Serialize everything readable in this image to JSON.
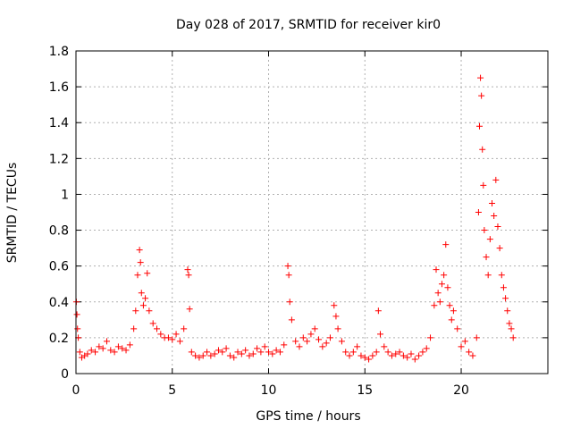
{
  "chart_data": {
    "type": "scatter",
    "title": "Day 028 of 2017, SRMTID for receiver kir0",
    "xlabel": "GPS time / hours",
    "ylabel": "SRMTID / TECUs",
    "xlim": [
      0,
      24.5
    ],
    "ylim": [
      0,
      1.8
    ],
    "grid": true,
    "x_ticks": [
      0,
      5,
      10,
      15,
      20
    ],
    "x_tick_labels": [
      "0",
      "5",
      "10",
      "15",
      "20"
    ],
    "y_ticks": [
      0,
      0.2,
      0.4,
      0.6,
      0.8,
      1.0,
      1.2,
      1.4,
      1.6,
      1.8
    ],
    "y_tick_labels": [
      "0",
      "0.2",
      "0.4",
      "0.6",
      "0.8",
      "1",
      "1.2",
      "1.4",
      "1.6",
      "1.8"
    ],
    "marker": "+",
    "color": "#ff0000",
    "series": [
      {
        "name": "SRMTID",
        "x": [
          0.02,
          0.05,
          0.08,
          0.12,
          0.2,
          0.3,
          0.45,
          0.6,
          0.8,
          1.0,
          1.2,
          1.4,
          1.6,
          1.8,
          2.0,
          2.2,
          2.4,
          2.6,
          2.8,
          3.0,
          3.1,
          3.2,
          3.3,
          3.35,
          3.4,
          3.5,
          3.6,
          3.7,
          3.8,
          4.0,
          4.2,
          4.4,
          4.6,
          4.8,
          5.0,
          5.2,
          5.4,
          5.6,
          5.8,
          5.85,
          5.9,
          6.0,
          6.2,
          6.4,
          6.6,
          6.8,
          7.0,
          7.2,
          7.4,
          7.6,
          7.8,
          8.0,
          8.2,
          8.4,
          8.6,
          8.8,
          9.0,
          9.2,
          9.4,
          9.6,
          9.8,
          10.0,
          10.2,
          10.4,
          10.6,
          10.8,
          11.0,
          11.05,
          11.1,
          11.2,
          11.4,
          11.6,
          11.8,
          12.0,
          12.2,
          12.4,
          12.6,
          12.8,
          13.0,
          13.2,
          13.4,
          13.5,
          13.6,
          13.8,
          14.0,
          14.2,
          14.4,
          14.6,
          14.8,
          15.0,
          15.2,
          15.4,
          15.6,
          15.7,
          15.8,
          16.0,
          16.2,
          16.4,
          16.6,
          16.8,
          17.0,
          17.2,
          17.4,
          17.6,
          17.8,
          18.0,
          18.2,
          18.4,
          18.6,
          18.7,
          18.8,
          18.9,
          19.0,
          19.1,
          19.2,
          19.3,
          19.4,
          19.5,
          19.6,
          19.8,
          20.0,
          20.2,
          20.4,
          20.6,
          20.8,
          20.9,
          20.95,
          21.0,
          21.05,
          21.1,
          21.15,
          21.2,
          21.3,
          21.4,
          21.5,
          21.6,
          21.7,
          21.8,
          21.9,
          22.0,
          22.1,
          22.2,
          22.3,
          22.4,
          22.5,
          22.6,
          22.7
        ],
        "y": [
          0.4,
          0.33,
          0.25,
          0.2,
          0.12,
          0.09,
          0.1,
          0.11,
          0.13,
          0.12,
          0.15,
          0.14,
          0.18,
          0.13,
          0.12,
          0.15,
          0.14,
          0.13,
          0.16,
          0.25,
          0.35,
          0.55,
          0.69,
          0.62,
          0.45,
          0.38,
          0.42,
          0.56,
          0.35,
          0.28,
          0.25,
          0.22,
          0.2,
          0.2,
          0.19,
          0.22,
          0.18,
          0.25,
          0.58,
          0.55,
          0.36,
          0.12,
          0.1,
          0.09,
          0.1,
          0.12,
          0.1,
          0.11,
          0.13,
          0.12,
          0.14,
          0.1,
          0.09,
          0.12,
          0.11,
          0.13,
          0.1,
          0.11,
          0.14,
          0.12,
          0.15,
          0.12,
          0.11,
          0.13,
          0.12,
          0.16,
          0.6,
          0.55,
          0.4,
          0.3,
          0.18,
          0.15,
          0.2,
          0.18,
          0.22,
          0.25,
          0.19,
          0.15,
          0.17,
          0.2,
          0.38,
          0.32,
          0.25,
          0.18,
          0.12,
          0.1,
          0.12,
          0.15,
          0.1,
          0.09,
          0.08,
          0.1,
          0.12,
          0.35,
          0.22,
          0.15,
          0.12,
          0.1,
          0.11,
          0.12,
          0.1,
          0.09,
          0.11,
          0.08,
          0.1,
          0.12,
          0.14,
          0.2,
          0.38,
          0.58,
          0.45,
          0.4,
          0.5,
          0.55,
          0.72,
          0.48,
          0.38,
          0.3,
          0.35,
          0.25,
          0.15,
          0.18,
          0.12,
          0.1,
          0.2,
          0.9,
          1.38,
          1.65,
          1.55,
          1.25,
          1.05,
          0.8,
          0.65,
          0.55,
          0.75,
          0.95,
          0.88,
          1.08,
          0.82,
          0.7,
          0.55,
          0.48,
          0.42,
          0.35,
          0.28,
          0.25,
          0.2
        ]
      }
    ]
  }
}
